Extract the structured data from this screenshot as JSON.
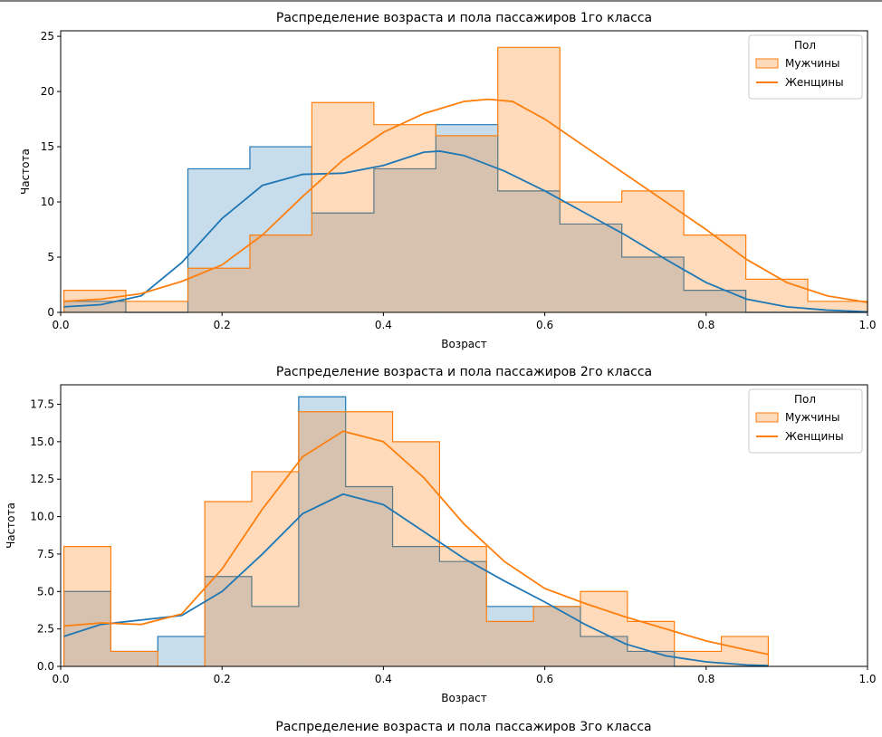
{
  "colors": {
    "series1": "#1f77b4",
    "series2": "#ff7f0e",
    "overlap": "#c6c3bc"
  },
  "chart_data": [
    {
      "type": "histogram",
      "title": "Распределение возраста и пола пассажиров 1го класса",
      "xlabel": "Возраст",
      "ylabel": "Частота",
      "xlim": [
        0,
        1.0
      ],
      "ylim": [
        0,
        25.5
      ],
      "xticks": [
        "0.0",
        "0.2",
        "0.4",
        "0.6",
        "0.8",
        "1.0"
      ],
      "yticks": [
        "0",
        "5",
        "10",
        "15",
        "20",
        "25"
      ],
      "legend": {
        "title": "Пол",
        "placement": "top-right",
        "entries": [
          "Мужчины",
          "Женщины"
        ]
      },
      "bin_edges": [
        0.004,
        0.0808,
        0.1577,
        0.2345,
        0.3113,
        0.3882,
        0.465,
        0.5418,
        0.6187,
        0.6955,
        0.7723,
        0.8492,
        0.926,
        1.0
      ],
      "series": [
        {
          "color": "#1f77b4",
          "counts": [
            1,
            0,
            13,
            15,
            9,
            13,
            17,
            11,
            8,
            5,
            2,
            0,
            0
          ],
          "kde": [
            [
              0.004,
              0.5
            ],
            [
              0.05,
              0.7
            ],
            [
              0.1,
              1.5
            ],
            [
              0.15,
              4.5
            ],
            [
              0.2,
              8.5
            ],
            [
              0.25,
              11.5
            ],
            [
              0.3,
              12.5
            ],
            [
              0.35,
              12.6
            ],
            [
              0.4,
              13.3
            ],
            [
              0.45,
              14.5
            ],
            [
              0.47,
              14.6
            ],
            [
              0.5,
              14.2
            ],
            [
              0.55,
              12.8
            ],
            [
              0.6,
              11.0
            ],
            [
              0.65,
              9.0
            ],
            [
              0.7,
              7.0
            ],
            [
              0.75,
              4.8
            ],
            [
              0.8,
              2.7
            ],
            [
              0.85,
              1.2
            ],
            [
              0.9,
              0.5
            ],
            [
              0.95,
              0.2
            ],
            [
              1.0,
              0.05
            ]
          ]
        },
        {
          "color": "#ff7f0e",
          "counts": [
            2,
            1,
            4,
            7,
            19,
            17,
            16,
            24,
            10,
            11,
            7,
            3,
            1
          ],
          "kde": [
            [
              0.004,
              1.0
            ],
            [
              0.05,
              1.2
            ],
            [
              0.1,
              1.7
            ],
            [
              0.15,
              2.8
            ],
            [
              0.2,
              4.3
            ],
            [
              0.25,
              7.0
            ],
            [
              0.3,
              10.5
            ],
            [
              0.35,
              13.8
            ],
            [
              0.4,
              16.3
            ],
            [
              0.45,
              18.0
            ],
            [
              0.5,
              19.1
            ],
            [
              0.53,
              19.3
            ],
            [
              0.56,
              19.1
            ],
            [
              0.6,
              17.5
            ],
            [
              0.65,
              15.0
            ],
            [
              0.7,
              12.5
            ],
            [
              0.75,
              10.0
            ],
            [
              0.8,
              7.5
            ],
            [
              0.85,
              4.8
            ],
            [
              0.9,
              2.7
            ],
            [
              0.95,
              1.5
            ],
            [
              1.0,
              0.9
            ]
          ]
        }
      ]
    },
    {
      "type": "histogram",
      "title": "Распределение возраста и пола пассажиров 2го класса",
      "xlabel": "Возраст",
      "ylabel": "Частота",
      "xlim": [
        0,
        1.0
      ],
      "ylim": [
        0,
        18.8
      ],
      "xticks": [
        "0.0",
        "0.2",
        "0.4",
        "0.6",
        "0.8",
        "1.0"
      ],
      "yticks": [
        "0.0",
        "2.5",
        "5.0",
        "7.5",
        "10.0",
        "12.5",
        "15.0",
        "17.5"
      ],
      "legend": {
        "title": "Пол",
        "placement": "top-right",
        "entries": [
          "Мужчины",
          "Женщины"
        ]
      },
      "bin_edges": [
        0.004,
        0.0622,
        0.1204,
        0.1786,
        0.2368,
        0.295,
        0.3532,
        0.4114,
        0.4696,
        0.5278,
        0.586,
        0.6442,
        0.7024,
        0.7606,
        0.8188,
        0.877
      ],
      "series": [
        {
          "color": "#1f77b4",
          "counts": [
            5,
            1,
            2,
            6,
            4,
            18,
            12,
            8,
            7,
            4,
            4,
            2,
            1,
            0,
            0
          ],
          "kde": [
            [
              0.004,
              2.0
            ],
            [
              0.05,
              2.8
            ],
            [
              0.1,
              3.1
            ],
            [
              0.15,
              3.4
            ],
            [
              0.2,
              5.0
            ],
            [
              0.25,
              7.5
            ],
            [
              0.3,
              10.2
            ],
            [
              0.35,
              11.5
            ],
            [
              0.4,
              10.8
            ],
            [
              0.45,
              9.0
            ],
            [
              0.5,
              7.2
            ],
            [
              0.55,
              5.7
            ],
            [
              0.6,
              4.3
            ],
            [
              0.65,
              2.8
            ],
            [
              0.7,
              1.5
            ],
            [
              0.75,
              0.7
            ],
            [
              0.8,
              0.3
            ],
            [
              0.85,
              0.1
            ],
            [
              0.877,
              0.05
            ]
          ]
        },
        {
          "color": "#ff7f0e",
          "counts": [
            8,
            1,
            0,
            11,
            13,
            17,
            17,
            15,
            8,
            3,
            4,
            5,
            3,
            1,
            2
          ],
          "kde": [
            [
              0.004,
              2.7
            ],
            [
              0.05,
              2.9
            ],
            [
              0.1,
              2.8
            ],
            [
              0.15,
              3.5
            ],
            [
              0.2,
              6.5
            ],
            [
              0.25,
              10.5
            ],
            [
              0.3,
              14.0
            ],
            [
              0.35,
              15.7
            ],
            [
              0.4,
              15.0
            ],
            [
              0.45,
              12.6
            ],
            [
              0.5,
              9.5
            ],
            [
              0.55,
              7.0
            ],
            [
              0.6,
              5.2
            ],
            [
              0.65,
              4.2
            ],
            [
              0.7,
              3.3
            ],
            [
              0.75,
              2.5
            ],
            [
              0.8,
              1.7
            ],
            [
              0.85,
              1.1
            ],
            [
              0.877,
              0.8
            ]
          ]
        }
      ]
    }
  ],
  "third_title": "Распределение возраста и пола пассажиров 3го класса"
}
